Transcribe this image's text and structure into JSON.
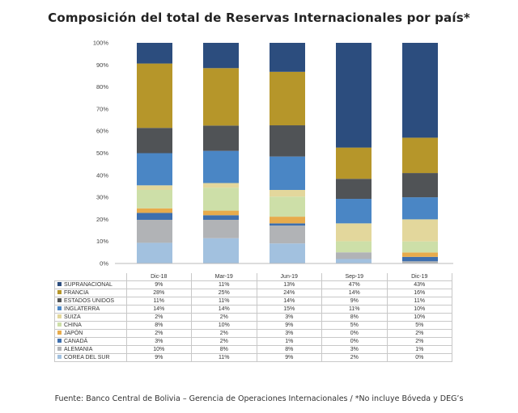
{
  "chart_data": {
    "type": "bar",
    "stacked": true,
    "title": "Composición del total de Reservas Internacionales por país*",
    "categories": [
      "Dic-18",
      "Mar-19",
      "Jun-19",
      "Sep-19",
      "Dic-19"
    ],
    "ylim": [
      0,
      100
    ],
    "yticks": [
      "0%",
      "10%",
      "20%",
      "30%",
      "40%",
      "50%",
      "60%",
      "70%",
      "80%",
      "90%",
      "100%"
    ],
    "series": [
      {
        "name": "SUPRANACIONAL",
        "color": "#2c4d7e",
        "values": [
          9,
          11,
          13,
          47,
          43
        ],
        "labels": [
          "9%",
          "11%",
          "13%",
          "47%",
          "43%"
        ]
      },
      {
        "name": "FRANCIA",
        "color": "#b6962a",
        "values": [
          28,
          25,
          24,
          14,
          16
        ],
        "labels": [
          "28%",
          "25%",
          "24%",
          "14%",
          "16%"
        ]
      },
      {
        "name": "ESTADOS UNIDOS",
        "color": "#505356",
        "values": [
          11,
          11,
          14,
          9,
          11
        ],
        "labels": [
          "11%",
          "11%",
          "14%",
          "9%",
          "11%"
        ]
      },
      {
        "name": "INGLATERRA",
        "color": "#4a86c5",
        "values": [
          14,
          14,
          15,
          11,
          10
        ],
        "labels": [
          "14%",
          "14%",
          "15%",
          "11%",
          "10%"
        ]
      },
      {
        "name": "SUIZA",
        "color": "#e3d79c",
        "values": [
          2,
          2,
          3,
          8,
          10
        ],
        "labels": [
          "2%",
          "2%",
          "3%",
          "8%",
          "10%"
        ]
      },
      {
        "name": "CHINA",
        "color": "#cddfa8",
        "values": [
          8,
          10,
          9,
          5,
          5
        ],
        "labels": [
          "8%",
          "10%",
          "9%",
          "5%",
          "5%"
        ]
      },
      {
        "name": "JAPÓN",
        "color": "#e7ab4c",
        "values": [
          2,
          2,
          3,
          0,
          2
        ],
        "labels": [
          "2%",
          "2%",
          "3%",
          "0%",
          "2%"
        ]
      },
      {
        "name": "CANADÁ",
        "color": "#3e6fae",
        "values": [
          3,
          2,
          1,
          0,
          2
        ],
        "labels": [
          "3%",
          "2%",
          "1%",
          "0%",
          "2%"
        ]
      },
      {
        "name": "ALEMANIA",
        "color": "#b1b3b6",
        "values": [
          10,
          8,
          8,
          3,
          1
        ],
        "labels": [
          "10%",
          "8%",
          "8%",
          "3%",
          "1%"
        ]
      },
      {
        "name": "COREA DEL SUR",
        "color": "#a2c1df",
        "values": [
          9,
          11,
          9,
          2,
          0
        ],
        "labels": [
          "9%",
          "11%",
          "9%",
          "2%",
          "0%"
        ]
      }
    ]
  },
  "footer": {
    "source": "Fuente: Banco Central de Bolivia – Gerencia de Operaciones Internacionales / *No incluye Bóveda y DEG’s"
  }
}
